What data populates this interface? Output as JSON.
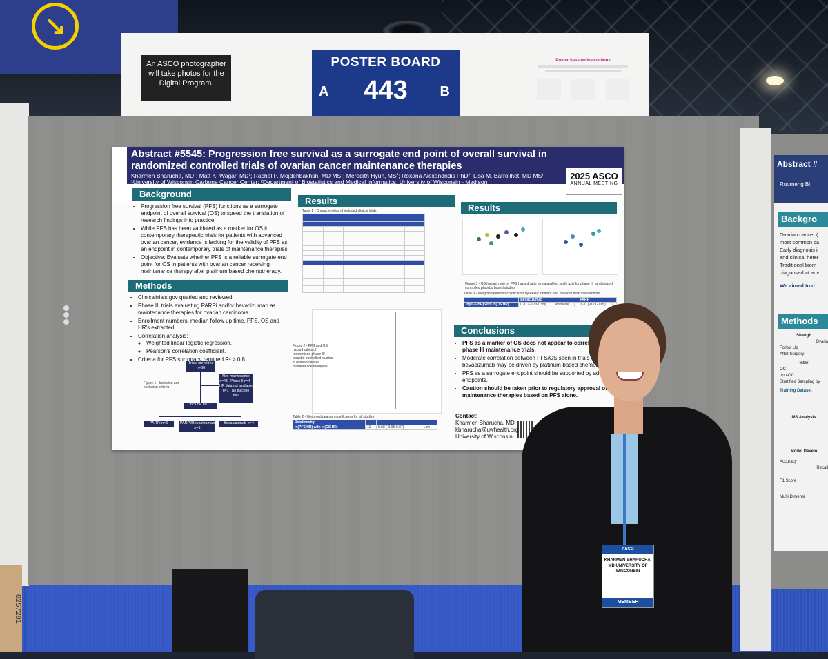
{
  "header_sign": {
    "photo_notice": "An ASCO photographer will take photos for the Digital Program.",
    "board_title": "POSTER BOARD",
    "side_a": "A",
    "board_number": "443",
    "side_b": "B",
    "instructions_title": "Poster Session Instructions"
  },
  "poster": {
    "title": "Abstract #5545: Progression free survival as a surrogate end point of overall survival in randomized controlled trials of ovarian cancer maintenance therapies",
    "authors": "Kharmen Bharucha, MD¹; Matt K. Wagar, MD¹; Rachel P. Mojdehbakhsh, MD MS¹; Meredith Hyun, MS²; Roxana Alexandridis PhD²; Lisa M. Barroilhet, MD MS¹",
    "affiliation": "¹University of Wisconsin Carbone Cancer Center; ²Department of Biostatistics and Medical Informatics, University of Wisconsin - Madison",
    "logo_main": "2025 ASCO",
    "logo_sub": "ANNUAL MEETING",
    "background": {
      "heading": "Background",
      "items": [
        "Progression free survival (PFS) functions as a surrogate endpoint of overall survival (OS) to speed the translation of research findings into practice.",
        "While PFS has been validated as a marker for OS in contemporary therapeutic trials for patients with advanced ovarian cancer, evidence is lacking for the validity of PFS as an endpoint in contemporary trials of maintenance therapies.",
        "Objective: Evaluate whether PFS is a reliable surrogate end point for OS in patients with ovarian cancer receiving maintenance therapy after platinum based chemotherapy."
      ]
    },
    "methods": {
      "heading": "Methods",
      "items": [
        "Clinicaltrials.gov queried and reviewed.",
        "Phase III trials evaluating PARPi and/or bevacizumab as maintenance therapies for ovarian carcinoma.",
        "Enrollment numbers, median follow up time, PFS, OS and HR's extracted.",
        "Correlation analysis:",
        "Weighted linear logistic regression.",
        "Pearson's correlation coefficient.",
        "Criteria for PFS surrogacy required R² > 0.8"
      ],
      "flow": {
        "top": "Trials identified n=60",
        "exclude": "Non-maintenance n=43 · Phase II n=4 · HR data not available n=1 · No placebo n=1",
        "include": "Include n=11",
        "figure_caption": "Figure 1 - Inclusion and exclusion criteria",
        "left": "PARPi n=6",
        "mid": "PARPi/Bevacizumab n=1",
        "right": "Bevacizumab n=4"
      }
    },
    "results_left": {
      "heading": "Results",
      "table_caption": "Table 1 - Characteristics of included clinical trials",
      "fig2_caption": "Figure 2 - PFS and OS hazard ratios of randomized phase III placebo-controlled studies in ovarian cancer maintenance therapies",
      "table2_caption": "Table 2 - Weighted pearson coefficients for all studies",
      "table2_rel": "Relationship",
      "table2_row": "ln(PFS HR) with ln(OS HR)",
      "table2_n": "11",
      "table2_val": "0.58 (-0.05-0.87)",
      "table2_strength": "Low"
    },
    "results_right": {
      "heading": "Results",
      "fig3_caption": "Figure 3 - OS hazard ratio by PFS hazard ratio on natural log scale axis for phase III randomized controlled placebo based studies",
      "table3_caption": "Table 3 - Weighted pearson coefficients by PARP inhibitor and Bevacizumab interventions",
      "bev_label": "Bevacizumab",
      "parp_label": "PARP",
      "row_label": "ln(PFS HR) with ln(OS HR)",
      "bev_val": "0.81 (-0.73-0.99)",
      "bev_strength": "Moderate",
      "parp_val": "0.20 (-0.71-0.86)"
    },
    "conclusions": {
      "heading": "Conclusions",
      "items": [
        "PFS as a marker of OS does not appear to correlate in phase III maintenance trials.",
        "Moderate correlation between PFS/OS seen in trials evaluating bevacizumab may be driven by platinum-based chemotherapy.",
        "PFS as a surrogate endpoint should be supported by additional endpoints.",
        "Caution should be taken prior to regulatory approval of maintenance therapies based on PFS alone."
      ],
      "contact_label": "Contact:",
      "contact_name": "Kharmen Bharucha, MD",
      "contact_email": "kbharucha@uwhealth.org",
      "contact_org": "University of Wisconsin"
    }
  },
  "badge": {
    "top": "ASCO",
    "name": "KHARMEN BHARUCHA, MD UNIVERSITY OF WISCONSIN",
    "member": "MEMBER"
  },
  "right_poster": {
    "title": "Abstract #",
    "author": "Ruomeng Bi",
    "background_heading": "Backgro",
    "background_lines": [
      "Ovarian cancer (",
      "most common ca",
      "Early diagnosis i",
      "and clinical heter",
      "Traditional biom",
      "diagnosed at adv",
      "We aimed to d"
    ],
    "methods_heading": "Methods",
    "methods_lines": [
      "Shangh",
      "Ovaria",
      "Follow Up",
      "After Surgery",
      "Inter",
      "OC",
      "non-OC",
      "Stratified Sampling by",
      "Training Dataset",
      "MS Analysis",
      "Model Develo",
      "Accuracy",
      "Recall",
      "F1 Score",
      "Multi-Dimensi"
    ]
  },
  "crate_text": "8257281"
}
